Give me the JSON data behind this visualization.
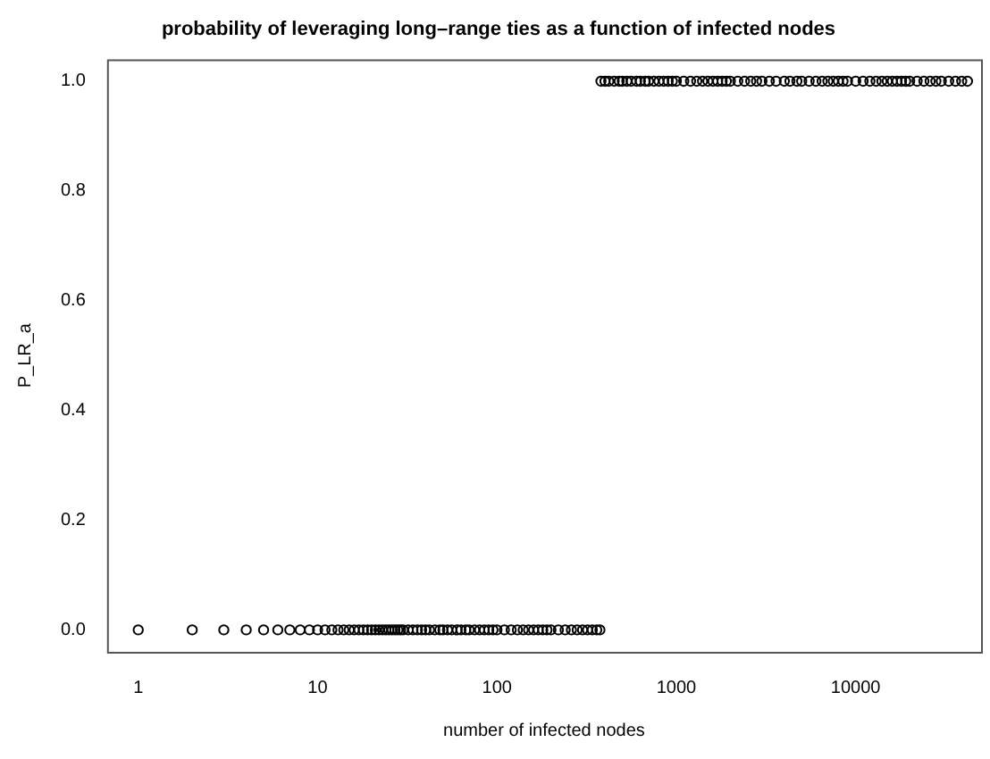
{
  "chart_data": {
    "type": "scatter",
    "title": "probability of leveraging long–range ties as a function of infected nodes",
    "xlabel": "number of infected nodes",
    "ylabel": "P_LR_a",
    "x": [
      1,
      2,
      3,
      4,
      5,
      6,
      7,
      8,
      9,
      10,
      11,
      12,
      13,
      14,
      15,
      16,
      17,
      18,
      19,
      20,
      21,
      22,
      23,
      24,
      25,
      26,
      27,
      28,
      29,
      30,
      32,
      34,
      36,
      38,
      40,
      42,
      45,
      48,
      50,
      53,
      56,
      60,
      63,
      67,
      70,
      75,
      80,
      85,
      90,
      95,
      100,
      110,
      120,
      130,
      140,
      150,
      160,
      170,
      180,
      190,
      200,
      220,
      240,
      260,
      280,
      300,
      320,
      340,
      360,
      375,
      380,
      400,
      420,
      450,
      480,
      500,
      530,
      560,
      600,
      630,
      670,
      700,
      750,
      800,
      850,
      900,
      950,
      1000,
      1100,
      1200,
      1300,
      1400,
      1500,
      1600,
      1700,
      1800,
      1900,
      2000,
      2200,
      2400,
      2600,
      2800,
      3000,
      3300,
      3600,
      4000,
      4300,
      4700,
      5000,
      5500,
      6000,
      6500,
      7000,
      7500,
      8000,
      8500,
      9000,
      10000,
      11000,
      12000,
      13000,
      14000,
      15000,
      16000,
      17000,
      18000,
      19000,
      20000,
      22000,
      24000,
      26000,
      28000,
      30000,
      33000,
      36000,
      39000,
      42000
    ],
    "values": [
      0,
      0,
      0,
      0,
      0,
      0,
      0,
      0,
      0,
      0,
      0,
      0,
      0,
      0,
      0,
      0,
      0,
      0,
      0,
      0,
      0,
      0,
      0,
      0,
      0,
      0,
      0,
      0,
      0,
      0,
      0,
      0,
      0,
      0,
      0,
      0,
      0,
      0,
      0,
      0,
      0,
      0,
      0,
      0,
      0,
      0,
      0,
      0,
      0,
      0,
      0,
      0,
      0,
      0,
      0,
      0,
      0,
      0,
      0,
      0,
      0,
      0,
      0,
      0,
      0,
      0,
      0,
      0,
      0,
      0,
      1,
      1,
      1,
      1,
      1,
      1,
      1,
      1,
      1,
      1,
      1,
      1,
      1,
      1,
      1,
      1,
      1,
      1,
      1,
      1,
      1,
      1,
      1,
      1,
      1,
      1,
      1,
      1,
      1,
      1,
      1,
      1,
      1,
      1,
      1,
      1,
      1,
      1,
      1,
      1,
      1,
      1,
      1,
      1,
      1,
      1,
      1,
      1,
      1,
      1,
      1,
      1,
      1,
      1,
      1,
      1,
      1,
      1,
      1,
      1,
      1,
      1,
      1,
      1,
      1,
      1,
      1
    ],
    "color": "#000000",
    "marker": "circle",
    "log": "x",
    "xlim": [
      0.67,
      50000
    ],
    "xticks": [
      1,
      10,
      100,
      1000,
      10000
    ],
    "ylim": [
      -0.04,
      1.04
    ],
    "yticks": [
      {
        "value": 0,
        "label": "0.0"
      },
      {
        "value": 0.2,
        "label": "0.2"
      },
      {
        "value": 0.4,
        "label": "0.4"
      },
      {
        "value": 0.6,
        "label": "0.6"
      },
      {
        "value": 0.8,
        "label": "0.8"
      },
      {
        "value": 1,
        "label": "1.0"
      }
    ],
    "grid": false,
    "legend": false
  }
}
